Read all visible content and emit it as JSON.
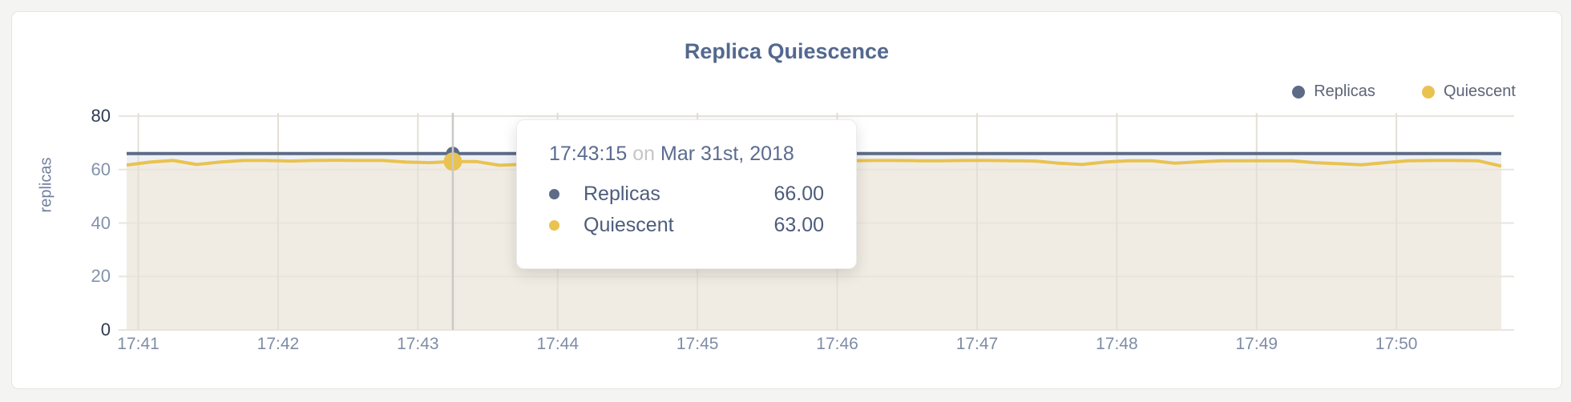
{
  "chart_data": {
    "type": "line",
    "title": "Replica Quiescence",
    "ylabel": "replicas",
    "ylim": [
      0,
      80
    ],
    "yticks": [
      0,
      20,
      40,
      60,
      80
    ],
    "xticks": [
      "17:41",
      "17:42",
      "17:43",
      "17:44",
      "17:45",
      "17:46",
      "17:47",
      "17:48",
      "17:49",
      "17:50"
    ],
    "x_range": [
      "17:40:55",
      "17:50:45"
    ],
    "grid": "on",
    "legend_position": "top-right",
    "x_times": [
      "17:40:55",
      "17:41:05",
      "17:41:15",
      "17:41:25",
      "17:41:35",
      "17:41:45",
      "17:41:55",
      "17:42:05",
      "17:42:15",
      "17:42:25",
      "17:42:35",
      "17:42:45",
      "17:42:55",
      "17:43:05",
      "17:43:15",
      "17:43:25",
      "17:43:35",
      "17:43:45",
      "17:43:55",
      "17:44:05",
      "17:44:15",
      "17:44:25",
      "17:44:35",
      "17:44:45",
      "17:44:55",
      "17:45:05",
      "17:45:15",
      "17:45:25",
      "17:45:35",
      "17:45:45",
      "17:45:55",
      "17:46:05",
      "17:46:15",
      "17:46:25",
      "17:46:35",
      "17:46:45",
      "17:46:55",
      "17:47:05",
      "17:47:15",
      "17:47:25",
      "17:47:35",
      "17:47:45",
      "17:47:55",
      "17:48:05",
      "17:48:15",
      "17:48:25",
      "17:48:35",
      "17:48:45",
      "17:48:55",
      "17:49:05",
      "17:49:15",
      "17:49:25",
      "17:49:35",
      "17:49:45",
      "17:49:55",
      "17:50:05",
      "17:50:15",
      "17:50:25",
      "17:50:35",
      "17:50:45"
    ],
    "series": [
      {
        "name": "Replicas",
        "color": "#5d6b87",
        "fill": "#eef0f4",
        "values": [
          66,
          66,
          66,
          66,
          66,
          66,
          66,
          66,
          66,
          66,
          66,
          66,
          66,
          66,
          66,
          66,
          66,
          66,
          66,
          66,
          66,
          66,
          66,
          66,
          66,
          66,
          66,
          66,
          66,
          66,
          66,
          66,
          66,
          66,
          66,
          66,
          66,
          66,
          66,
          66,
          66,
          66,
          66,
          66,
          66,
          66,
          66,
          66,
          66,
          66,
          66,
          66,
          66,
          66,
          66,
          66,
          66,
          66,
          66,
          66
        ]
      },
      {
        "name": "Quiescent",
        "color": "#e9c250",
        "fill": "#f0ece3",
        "values": [
          61.7,
          62.8,
          63.4,
          61.9,
          62.8,
          63.4,
          63.4,
          63.2,
          63.4,
          63.5,
          63.4,
          63.4,
          62.8,
          62.6,
          63.0,
          63.0,
          61.6,
          62.0,
          63.0,
          63.5,
          63.5,
          63.4,
          63.4,
          63.3,
          62.6,
          62.0,
          62.8,
          63.4,
          63.4,
          63.4,
          63.3,
          63.3,
          63.4,
          63.4,
          63.3,
          63.3,
          63.4,
          63.4,
          63.3,
          63.2,
          62.4,
          61.9,
          62.8,
          63.3,
          63.3,
          62.4,
          62.9,
          63.3,
          63.3,
          63.3,
          63.3,
          62.6,
          62.2,
          61.8,
          62.6,
          63.3,
          63.4,
          63.4,
          63.3,
          61.3
        ]
      }
    ],
    "tooltip": {
      "time": "17:43:15",
      "connector": "on",
      "date": "Mar 31st, 2018",
      "rows": [
        {
          "name": "Replicas",
          "value": "66.00",
          "color": "#5d6b87"
        },
        {
          "name": "Quiescent",
          "value": "63.00",
          "color": "#e9c250"
        }
      ]
    },
    "colors": {
      "axis_text": "#8392ab",
      "axis_text_dark": "#2f3a52",
      "grid_vertical": "#e3dfd7",
      "grid_horizontal": "#e8e5de",
      "crosshair": "#c9c9c6",
      "title_text": "#53688e"
    }
  }
}
